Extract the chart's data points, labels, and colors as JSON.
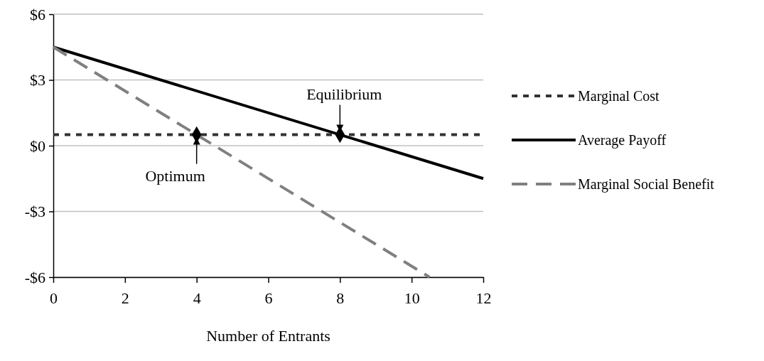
{
  "chart_data": {
    "type": "line",
    "xlabel": "Number of Entrants",
    "xlim": [
      0,
      12
    ],
    "xticks": [
      0,
      2,
      4,
      6,
      8,
      10,
      12
    ],
    "ylim": [
      -6,
      6
    ],
    "yticks": [
      {
        "value": -6,
        "label": "-$6"
      },
      {
        "value": -3,
        "label": "-$3"
      },
      {
        "value": 0,
        "label": "$0"
      },
      {
        "value": 3,
        "label": "$3"
      },
      {
        "value": 6,
        "label": "$6"
      }
    ],
    "grid": "y",
    "legend": "right",
    "marker": "none",
    "series": [
      {
        "name": "Marginal Cost",
        "color": "#333333",
        "line_style": "dotted",
        "x": [
          0,
          12
        ],
        "values": [
          0.5,
          0.5
        ]
      },
      {
        "name": "Average Payoff",
        "color": "#000000",
        "line_style": "solid",
        "x": [
          0,
          12
        ],
        "values": [
          4.5,
          -1.5
        ]
      },
      {
        "name": "Marginal Social Benefit",
        "color": "#808080",
        "line_style": "dashed",
        "x": [
          0,
          10.5
        ],
        "values": [
          4.5,
          -6
        ]
      },
      {
        "type": "scatter",
        "color": "#000000",
        "marker": "diamond",
        "x": [
          4,
          8
        ],
        "values": [
          0.5,
          0.5
        ]
      }
    ],
    "annotations": [
      {
        "text": "Equilibrium",
        "x": 8,
        "y": 0.5
      },
      {
        "text": "Optimum",
        "x": 4,
        "y": 0.5
      }
    ]
  }
}
